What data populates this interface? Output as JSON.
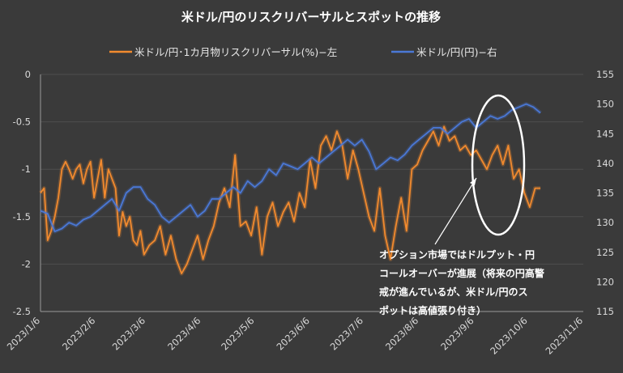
{
  "chart_data": {
    "type": "line",
    "title": "米ドル/円のリスクリバーサルとスポットの推移",
    "series": [
      {
        "name": "米ドル/円･1カ月物リスクリバーサル(%)−左",
        "axis": "left",
        "color": "#f28a2e",
        "x": [
          "2023/1/6",
          "2023/1/8",
          "2023/1/10",
          "2023/1/12",
          "2023/1/14",
          "2023/1/16",
          "2023/1/18",
          "2023/1/20",
          "2023/1/22",
          "2023/1/24",
          "2023/1/26",
          "2023/1/28",
          "2023/1/30",
          "2023/2/1",
          "2023/2/3",
          "2023/2/5",
          "2023/2/7",
          "2023/2/9",
          "2023/2/11",
          "2023/2/13",
          "2023/2/15",
          "2023/2/17",
          "2023/2/19",
          "2023/2/21",
          "2023/2/23",
          "2023/2/25",
          "2023/2/27",
          "2023/3/1",
          "2023/3/3",
          "2023/3/5",
          "2023/3/8",
          "2023/3/11",
          "2023/3/14",
          "2023/3/17",
          "2023/3/20",
          "2023/3/23",
          "2023/3/26",
          "2023/3/29",
          "2023/4/1",
          "2023/4/4",
          "2023/4/7",
          "2023/4/10",
          "2023/4/13",
          "2023/4/16",
          "2023/4/19",
          "2023/4/22",
          "2023/4/25",
          "2023/4/28",
          "2023/5/1",
          "2023/5/4",
          "2023/5/7",
          "2023/5/10",
          "2023/5/13",
          "2023/5/16",
          "2023/5/19",
          "2023/5/22",
          "2023/5/25",
          "2023/5/28",
          "2023/5/31",
          "2023/6/3",
          "2023/6/6",
          "2023/6/9",
          "2023/6/12",
          "2023/6/15",
          "2023/6/18",
          "2023/6/21",
          "2023/6/24",
          "2023/6/27",
          "2023/6/30",
          "2023/7/3",
          "2023/7/6",
          "2023/7/9",
          "2023/7/12",
          "2023/7/15",
          "2023/7/18",
          "2023/7/21",
          "2023/7/24",
          "2023/7/27",
          "2023/7/30",
          "2023/8/2",
          "2023/8/5",
          "2023/8/8",
          "2023/8/11",
          "2023/8/14",
          "2023/8/17",
          "2023/8/20",
          "2023/8/23",
          "2023/8/26",
          "2023/8/29",
          "2023/9/1",
          "2023/9/4",
          "2023/9/7",
          "2023/9/10",
          "2023/9/13",
          "2023/9/16",
          "2023/9/19",
          "2023/9/22",
          "2023/9/25",
          "2023/9/28",
          "2023/10/1",
          "2023/10/4",
          "2023/10/7",
          "2023/10/10",
          "2023/10/13"
        ],
        "values": [
          -1.25,
          -1.2,
          -1.75,
          -1.65,
          -1.5,
          -1.3,
          -1.0,
          -0.92,
          -1.0,
          -1.1,
          -1.0,
          -0.95,
          -1.15,
          -1.0,
          -0.92,
          -1.3,
          -1.1,
          -0.9,
          -1.3,
          -1.0,
          -1.1,
          -1.2,
          -1.7,
          -1.45,
          -1.6,
          -1.5,
          -1.75,
          -1.8,
          -1.65,
          -1.9,
          -1.8,
          -1.75,
          -1.6,
          -1.9,
          -1.7,
          -1.95,
          -2.1,
          -2.0,
          -1.85,
          -1.7,
          -1.95,
          -1.75,
          -1.6,
          -1.35,
          -1.2,
          -1.4,
          -0.85,
          -1.6,
          -1.55,
          -1.7,
          -1.4,
          -1.9,
          -1.5,
          -1.35,
          -1.6,
          -1.45,
          -1.35,
          -1.55,
          -1.25,
          -1.4,
          -0.9,
          -1.2,
          -0.75,
          -0.65,
          -0.8,
          -0.6,
          -0.75,
          -1.1,
          -0.8,
          -1.0,
          -1.25,
          -1.5,
          -1.65,
          -1.2,
          -1.7,
          -1.95,
          -1.6,
          -1.3,
          -1.65,
          -1.0,
          -0.95,
          -0.8,
          -0.7,
          -0.6,
          -0.75,
          -0.55,
          -0.7,
          -0.65,
          -0.8,
          -0.75,
          -0.85,
          -0.8,
          -0.9,
          -1.0,
          -0.85,
          -0.75,
          -0.95,
          -0.75,
          -1.1,
          -1.0,
          -1.25,
          -1.4,
          -1.2,
          -1.2
        ]
      },
      {
        "name": "米ドル/円(円)−右",
        "axis": "right",
        "color": "#4a78d6",
        "x": [
          "2023/1/6",
          "2023/1/10",
          "2023/1/14",
          "2023/1/18",
          "2023/1/22",
          "2023/1/26",
          "2023/1/30",
          "2023/2/3",
          "2023/2/7",
          "2023/2/11",
          "2023/2/15",
          "2023/2/19",
          "2023/2/23",
          "2023/2/27",
          "2023/3/3",
          "2023/3/7",
          "2023/3/11",
          "2023/3/15",
          "2023/3/19",
          "2023/3/23",
          "2023/3/27",
          "2023/3/31",
          "2023/4/4",
          "2023/4/8",
          "2023/4/12",
          "2023/4/16",
          "2023/4/20",
          "2023/4/24",
          "2023/4/28",
          "2023/5/2",
          "2023/5/6",
          "2023/5/10",
          "2023/5/14",
          "2023/5/18",
          "2023/5/22",
          "2023/5/26",
          "2023/5/30",
          "2023/6/3",
          "2023/6/7",
          "2023/6/11",
          "2023/6/15",
          "2023/6/19",
          "2023/6/23",
          "2023/6/27",
          "2023/7/1",
          "2023/7/5",
          "2023/7/9",
          "2023/7/13",
          "2023/7/17",
          "2023/7/21",
          "2023/7/25",
          "2023/7/29",
          "2023/8/2",
          "2023/8/6",
          "2023/8/10",
          "2023/8/14",
          "2023/8/18",
          "2023/8/22",
          "2023/8/26",
          "2023/8/30",
          "2023/9/3",
          "2023/9/7",
          "2023/9/11",
          "2023/9/15",
          "2023/9/19",
          "2023/9/23",
          "2023/9/27",
          "2023/10/1",
          "2023/10/5",
          "2023/10/9",
          "2023/10/13"
        ],
        "values": [
          132,
          131.5,
          128.5,
          129,
          130,
          129.5,
          130.5,
          131,
          132,
          133,
          134,
          132,
          135,
          136,
          136,
          134,
          133,
          131,
          130,
          131,
          132,
          133,
          131,
          132,
          134,
          134,
          135,
          136,
          135,
          137,
          136,
          137,
          139,
          138,
          140,
          139.5,
          139,
          140,
          141,
          140,
          141,
          142,
          143,
          144,
          143,
          144,
          142,
          139,
          140,
          141,
          140.5,
          141.5,
          143,
          144,
          145,
          146,
          146,
          145,
          146,
          147,
          147.5,
          146,
          147,
          148,
          147.5,
          148,
          149,
          149.5,
          150,
          149.5,
          148.5
        ]
      }
    ],
    "y_left": {
      "min": -2.5,
      "max": 0,
      "step": 0.5,
      "ticks": [
        "-2.5",
        "-2",
        "-1.5",
        "-1",
        "-0.5",
        "0"
      ]
    },
    "y_right": {
      "min": 115,
      "max": 155,
      "step": 5,
      "ticks": [
        "115",
        "120",
        "125",
        "130",
        "135",
        "140",
        "145",
        "150",
        "155"
      ]
    },
    "x_ticks": [
      "2023/1/6",
      "2023/2/6",
      "2023/3/6",
      "2023/4/6",
      "2023/5/6",
      "2023/6/6",
      "2023/7/6",
      "2023/8/6",
      "2023/9/6",
      "2023/10/6",
      "2023/11/6"
    ],
    "legend_position": "top-center",
    "grid": true,
    "annotation": {
      "lines": [
        "オプション市場ではドルプット・円",
        "コールオーバーが進展（将来の円高警",
        "戒が進んでいるが、米ドル/円のス",
        "ポットは高値張り付き）"
      ]
    }
  }
}
